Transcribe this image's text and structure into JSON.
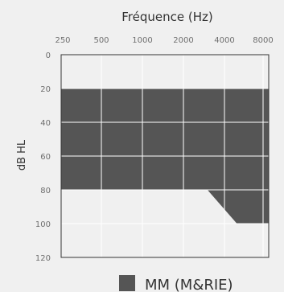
{
  "chart_data": {
    "type": "area",
    "title": "",
    "xlabel": "Fréquence (Hz)",
    "ylabel": "dB HL",
    "x_scale": "log",
    "y_inverted": true,
    "x_ticks": [
      250,
      500,
      1000,
      2000,
      4000,
      8000
    ],
    "x_tick_labels": [
      "250",
      "500",
      "1000",
      "2000",
      "4000",
      "8000"
    ],
    "y_ticks": [
      0,
      20,
      40,
      60,
      80,
      100,
      120
    ],
    "y_tick_labels": [
      "0",
      "20",
      "40",
      "60",
      "80",
      "100",
      "120"
    ],
    "xlim": [
      250,
      8000
    ],
    "ylim": [
      0,
      120
    ],
    "grid": true,
    "legend_position": "bottom-right",
    "series": [
      {
        "name": "MM (M&RIE)",
        "color": "#555555",
        "upper_boundary": [
          {
            "x": 250,
            "y": 20
          },
          {
            "x": 8000,
            "y": 20
          }
        ],
        "lower_boundary": [
          {
            "x": 250,
            "y": 80
          },
          {
            "x": 3000,
            "y": 80
          },
          {
            "x": 5000,
            "y": 100
          },
          {
            "x": 8000,
            "y": 100
          }
        ]
      }
    ]
  },
  "colors": {
    "background": "#f0f0f0",
    "plot_background": "#f0f0f0",
    "grid": "#ffffff",
    "frame": "#333333",
    "fill": "#555555"
  }
}
